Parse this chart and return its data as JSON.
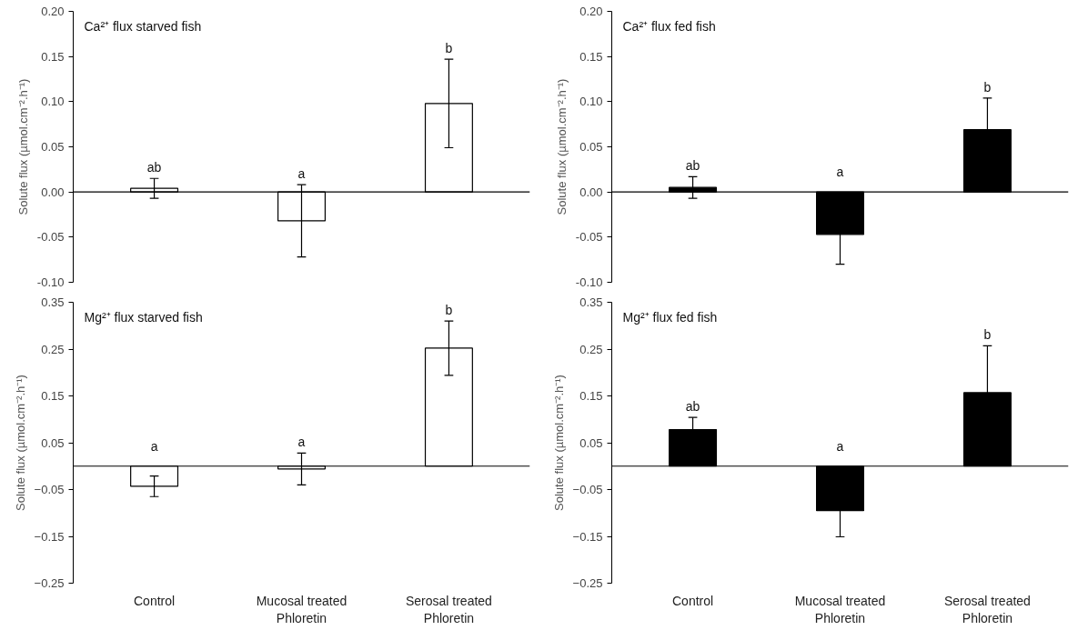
{
  "chart_data": [
    {
      "type": "bar",
      "title": "Ca²⁺ flux starved fish",
      "ylabel": "Solute flux (µmol.cm⁻².h⁻¹)",
      "categories": [
        "Control",
        "Mucosal treated\nPhloretin",
        "Serosal treated\nPhloretin"
      ],
      "tick_labels": "y",
      "series": [
        {
          "color": "#ffffff",
          "values": [
            0.004,
            -0.032,
            0.098
          ],
          "errors": [
            0.011,
            0.04,
            0.049
          ]
        }
      ],
      "ylim": [
        -0.1,
        0.2
      ],
      "yticks": [
        {
          "value": -0.1,
          "label": "-0.10"
        },
        {
          "value": -0.05,
          "label": "-0.05"
        },
        {
          "value": 0,
          "label": "0.00"
        },
        {
          "value": 0.05,
          "label": "0.05"
        },
        {
          "value": 0.1,
          "label": "0.10"
        },
        {
          "value": 0.15,
          "label": "0.15"
        },
        {
          "value": 0.2,
          "label": "0.20"
        }
      ],
      "annotations": [
        {
          "text": "ab",
          "x": "Control",
          "y": 0.015
        },
        {
          "text": "a",
          "x": "Mucosal treated\nPhloretin",
          "y": 0.008
        },
        {
          "text": "b",
          "x": "Serosal treated\nPhloretin",
          "y": 0.147
        }
      ]
    },
    {
      "type": "bar",
      "title": "Ca²⁺ flux fed fish",
      "ylabel": "Solute flux (µmol.cm⁻².h⁻¹)",
      "categories": [
        "Control",
        "Mucosal treated\nPhloretin",
        "Serosal treated\nPhloretin"
      ],
      "tick_labels": "y",
      "series": [
        {
          "color": "#000000",
          "values": [
            0.005,
            -0.047,
            0.069
          ],
          "errors": [
            0.012,
            0.033,
            0.035
          ]
        }
      ],
      "ylim": [
        -0.1,
        0.2
      ],
      "yticks": [
        {
          "value": -0.1,
          "label": "-0.10"
        },
        {
          "value": -0.05,
          "label": "-0.05"
        },
        {
          "value": 0,
          "label": "0.00"
        },
        {
          "value": 0.05,
          "label": "0.05"
        },
        {
          "value": 0.1,
          "label": "0.10"
        },
        {
          "value": 0.15,
          "label": "0.15"
        },
        {
          "value": 0.2,
          "label": "0.20"
        }
      ],
      "annotations": [
        {
          "text": "ab",
          "x": "Control",
          "y": 0.017
        },
        {
          "text": "a",
          "x": "Mucosal treated\nPhloretin",
          "y": 0.0
        },
        {
          "text": "b",
          "x": "Serosal treated\nPhloretin",
          "y": 0.104
        }
      ]
    },
    {
      "type": "bar",
      "title": "Mg²⁺ flux starved fish",
      "ylabel": "Solute flux (µmol.cm⁻².h⁻¹)",
      "categories": [
        "Control",
        "Mucosal treated\nPhloretin",
        "Serosal treated\nPhloretin"
      ],
      "series": [
        {
          "color": "#ffffff",
          "values": [
            -0.043,
            -0.006,
            0.252
          ],
          "errors": [
            0.022,
            0.034,
            0.058
          ]
        }
      ],
      "ylim": [
        -0.25,
        0.35
      ],
      "yticks": [
        -0.25,
        -0.15,
        -0.05,
        0.05,
        0.15,
        0.25,
        0.35
      ],
      "annotations": [
        {
          "text": "a",
          "x": "Control",
          "y": 0.0
        },
        {
          "text": "a",
          "x": "Mucosal treated\nPhloretin",
          "y": 0.028
        },
        {
          "text": "b",
          "x": "Serosal treated\nPhloretin",
          "y": 0.31
        }
      ]
    },
    {
      "type": "bar",
      "title": "Mg²⁺ flux fed fish",
      "ylabel": "Solute flux (µmol.cm⁻².h⁻¹)",
      "categories": [
        "Control",
        "Mucosal treated\nPhloretin",
        "Serosal treated\nPhloretin"
      ],
      "series": [
        {
          "color": "#000000",
          "values": [
            0.078,
            -0.095,
            0.157
          ],
          "errors": [
            0.026,
            0.056,
            0.1
          ]
        }
      ],
      "ylim": [
        -0.25,
        0.35
      ],
      "yticks": [
        -0.25,
        -0.15,
        -0.05,
        0.05,
        0.15,
        0.25,
        0.35
      ],
      "annotations": [
        {
          "text": "ab",
          "x": "Control",
          "y": 0.104
        },
        {
          "text": "a",
          "x": "Mucosal treated\nPhloretin",
          "y": 0.0
        },
        {
          "text": "b",
          "x": "Serosal treated\nPhloretin",
          "y": 0.257
        }
      ]
    }
  ]
}
